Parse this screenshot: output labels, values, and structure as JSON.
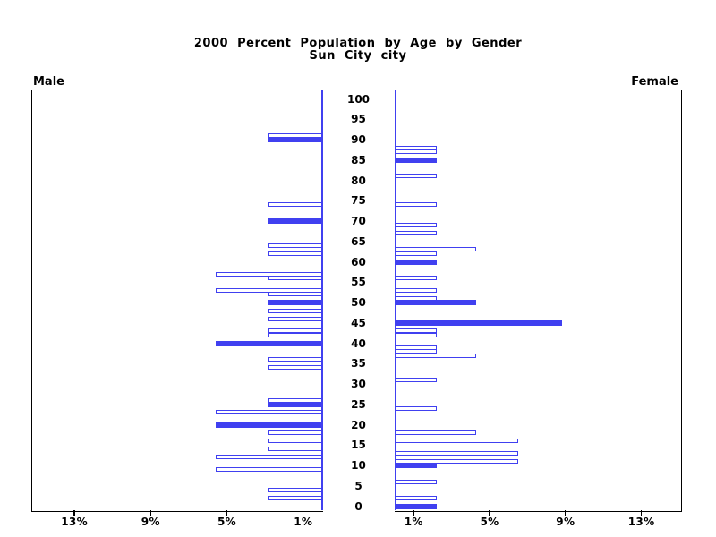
{
  "title": {
    "line1": "2000 Percent Population by Age by Gender",
    "line2": "Sun City city"
  },
  "panel_labels": {
    "male": "Male",
    "female": "Female"
  },
  "colors": {
    "bar_blue": "#4040f0",
    "axis_black": "#000000"
  },
  "chart_data": {
    "type": "bar",
    "variant": "population-pyramid",
    "title": "2000 Percent Population by Age by Gender",
    "subtitle": "Sun City city",
    "age_axis": {
      "min": 0,
      "max": 100,
      "tick_step": 5,
      "tick_labels": [
        "100",
        "95",
        "90",
        "85",
        "80",
        "75",
        "70",
        "65",
        "60",
        "55",
        "50",
        "45",
        "40",
        "35",
        "30",
        "25",
        "20",
        "15",
        "10",
        "5",
        "0"
      ]
    },
    "pct_axis": {
      "male_tick_labels": [
        "13%",
        "9%",
        "5%",
        "1%"
      ],
      "male_tick_values": [
        13,
        9,
        5,
        1
      ],
      "female_tick_labels": [
        "1%",
        "5%",
        "9%",
        "13%"
      ],
      "female_tick_values": [
        1,
        5,
        9,
        13
      ],
      "max_pct": 15
    },
    "legend": "solid bars mark ages at multiples of five; outlined bars are other single years of age",
    "series": [
      {
        "name": "Male",
        "bars": [
          {
            "age": 91,
            "pct": 2.8,
            "filled": false
          },
          {
            "age": 90,
            "pct": 2.8,
            "filled": true
          },
          {
            "age": 74,
            "pct": 2.8,
            "filled": false
          },
          {
            "age": 70,
            "pct": 2.8,
            "filled": true
          },
          {
            "age": 64,
            "pct": 2.8,
            "filled": false
          },
          {
            "age": 62,
            "pct": 2.8,
            "filled": false
          },
          {
            "age": 57,
            "pct": 5.6,
            "filled": false
          },
          {
            "age": 56,
            "pct": 2.8,
            "filled": false
          },
          {
            "age": 53,
            "pct": 5.6,
            "filled": false
          },
          {
            "age": 52,
            "pct": 2.8,
            "filled": false
          },
          {
            "age": 50,
            "pct": 2.8,
            "filled": true
          },
          {
            "age": 48,
            "pct": 2.8,
            "filled": false
          },
          {
            "age": 46,
            "pct": 2.8,
            "filled": false
          },
          {
            "age": 43,
            "pct": 2.8,
            "filled": false
          },
          {
            "age": 42,
            "pct": 2.8,
            "filled": false
          },
          {
            "age": 40,
            "pct": 5.6,
            "filled": true
          },
          {
            "age": 36,
            "pct": 2.8,
            "filled": false
          },
          {
            "age": 34,
            "pct": 2.8,
            "filled": false
          },
          {
            "age": 26,
            "pct": 2.8,
            "filled": false
          },
          {
            "age": 25,
            "pct": 2.8,
            "filled": true
          },
          {
            "age": 23,
            "pct": 5.6,
            "filled": false
          },
          {
            "age": 20,
            "pct": 5.6,
            "filled": true
          },
          {
            "age": 18,
            "pct": 2.8,
            "filled": false
          },
          {
            "age": 16,
            "pct": 2.8,
            "filled": false
          },
          {
            "age": 14,
            "pct": 2.8,
            "filled": false
          },
          {
            "age": 12,
            "pct": 5.6,
            "filled": false
          },
          {
            "age": 9,
            "pct": 5.6,
            "filled": false
          },
          {
            "age": 4,
            "pct": 2.8,
            "filled": false
          },
          {
            "age": 2,
            "pct": 2.8,
            "filled": false
          }
        ]
      },
      {
        "name": "Female",
        "bars": [
          {
            "age": 88,
            "pct": 2.2,
            "filled": false
          },
          {
            "age": 87,
            "pct": 2.2,
            "filled": false
          },
          {
            "age": 85,
            "pct": 2.2,
            "filled": true
          },
          {
            "age": 81,
            "pct": 2.2,
            "filled": false
          },
          {
            "age": 74,
            "pct": 2.2,
            "filled": false
          },
          {
            "age": 69,
            "pct": 2.2,
            "filled": false
          },
          {
            "age": 67,
            "pct": 2.2,
            "filled": false
          },
          {
            "age": 63,
            "pct": 4.3,
            "filled": false
          },
          {
            "age": 62,
            "pct": 2.2,
            "filled": false
          },
          {
            "age": 60,
            "pct": 2.2,
            "filled": true
          },
          {
            "age": 56,
            "pct": 2.2,
            "filled": false
          },
          {
            "age": 53,
            "pct": 2.2,
            "filled": false
          },
          {
            "age": 51,
            "pct": 2.2,
            "filled": false
          },
          {
            "age": 50,
            "pct": 4.3,
            "filled": true
          },
          {
            "age": 45,
            "pct": 8.8,
            "filled": true
          },
          {
            "age": 43,
            "pct": 2.2,
            "filled": false
          },
          {
            "age": 42,
            "pct": 2.2,
            "filled": false
          },
          {
            "age": 39,
            "pct": 2.2,
            "filled": false
          },
          {
            "age": 38,
            "pct": 2.2,
            "filled": false
          },
          {
            "age": 37,
            "pct": 4.3,
            "filled": false
          },
          {
            "age": 31,
            "pct": 2.2,
            "filled": false
          },
          {
            "age": 24,
            "pct": 2.2,
            "filled": false
          },
          {
            "age": 18,
            "pct": 4.3,
            "filled": false
          },
          {
            "age": 16,
            "pct": 6.5,
            "filled": false
          },
          {
            "age": 13,
            "pct": 6.5,
            "filled": false
          },
          {
            "age": 11,
            "pct": 6.5,
            "filled": false
          },
          {
            "age": 10,
            "pct": 2.2,
            "filled": true
          },
          {
            "age": 6,
            "pct": 2.2,
            "filled": false
          },
          {
            "age": 2,
            "pct": 2.2,
            "filled": false
          },
          {
            "age": 0,
            "pct": 2.2,
            "filled": true
          }
        ]
      }
    ]
  }
}
